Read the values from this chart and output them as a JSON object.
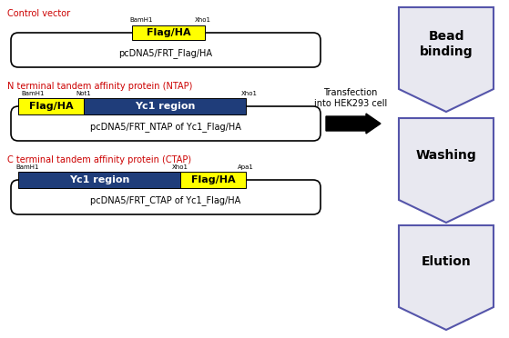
{
  "bg_color": "#ffffff",
  "red_text": "#cc0000",
  "blue_box_color": "#1f3d7a",
  "yellow_box_color": "#ffff00",
  "chevron_fill": "#e8e8f0",
  "chevron_edge": "#5555aa",
  "section1": {
    "label": "Control vector",
    "bamh1": "BamH1",
    "xho1": "Xho1",
    "flag_ha": "Flag/HA",
    "vector_name": "pcDNA5/FRT_Flag/HA"
  },
  "section2": {
    "label": "N terminal tandem affinity protein (NTAP)",
    "bamh1": "BamH1",
    "not1": "Not1",
    "xho1": "Xho1",
    "flag_ha": "Flag/HA",
    "yc1": "Yc1 region",
    "vector_name": "pcDNA5/FRT_NTAP of Yc1_Flag/HA"
  },
  "section3": {
    "label": "C terminal tandem affinity protein (CTAP)",
    "bamh1": "BamH1",
    "xho1": "Xho1",
    "apa1": "Apa1",
    "flag_ha": "Flag/HA",
    "yc1": "Yc1 region",
    "vector_name": "pcDNA5/FRT_CTAP of Yc1_Flag/HA"
  },
  "transfection_text": "Transfection\ninto HEK293 cell",
  "chevron_labels": [
    "Bead\nbinding",
    "Washing",
    "Elution"
  ],
  "fig_w": 5.59,
  "fig_h": 3.72,
  "dpi": 100
}
